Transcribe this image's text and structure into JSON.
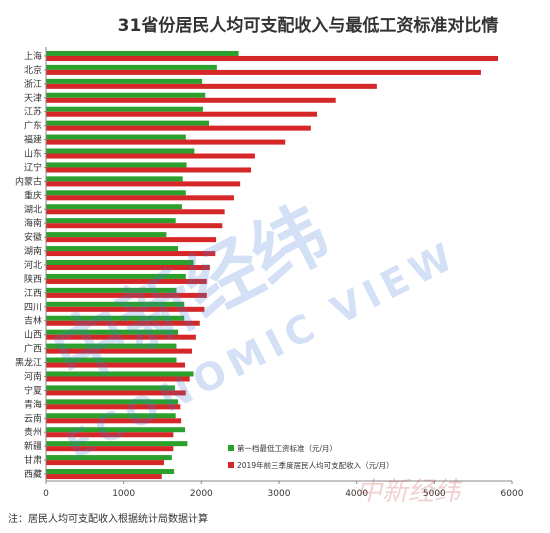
{
  "chart_data": {
    "type": "bar",
    "orientation": "horizontal",
    "title": "31省份居民人均可支配收入与最低工资标准对比情",
    "categories": [
      "上海",
      "北京",
      "浙江",
      "天津",
      "江苏",
      "广东",
      "福建",
      "山东",
      "辽宁",
      "内蒙古",
      "重庆",
      "湖北",
      "海南",
      "安徽",
      "湖南",
      "河北",
      "陕西",
      "江西",
      "四川",
      "吉林",
      "山西",
      "广西",
      "黑龙江",
      "河南",
      "宁夏",
      "青海",
      "云南",
      "贵州",
      "新疆",
      "甘肃",
      "西藏"
    ],
    "series": [
      {
        "name": "第一档最低工资标准（元/月）",
        "color": "#2ca02c",
        "values": [
          2480,
          2200,
          2010,
          2050,
          2020,
          2100,
          1800,
          1910,
          1810,
          1760,
          1800,
          1750,
          1670,
          1550,
          1700,
          1900,
          1800,
          1680,
          1780,
          1780,
          1700,
          1680,
          1680,
          1900,
          1660,
          1700,
          1670,
          1790,
          1820,
          1620,
          1650
        ]
      },
      {
        "name": "2019年前三季度居民人均可支配收入（元/月）",
        "color": "#d62728",
        "values": [
          5820,
          5600,
          4260,
          3730,
          3490,
          3410,
          3080,
          2690,
          2640,
          2500,
          2420,
          2300,
          2270,
          2190,
          2180,
          2110,
          2070,
          2070,
          2040,
          1980,
          1930,
          1880,
          1790,
          1850,
          1800,
          1730,
          1740,
          1640,
          1640,
          1520,
          1490
        ]
      }
    ],
    "xlim": [
      0,
      6000
    ],
    "xticks": [
      0,
      1000,
      2000,
      3000,
      4000,
      5000,
      6000
    ],
    "legend_position": "bottom-right",
    "grid": false
  },
  "footnote": "注：居民人均可支配收入根据统计局数据计算",
  "watermark": {
    "text_cn": "中新经纬",
    "text_en": "ECONOMIC VIEW",
    "signature": "中新经纬"
  }
}
